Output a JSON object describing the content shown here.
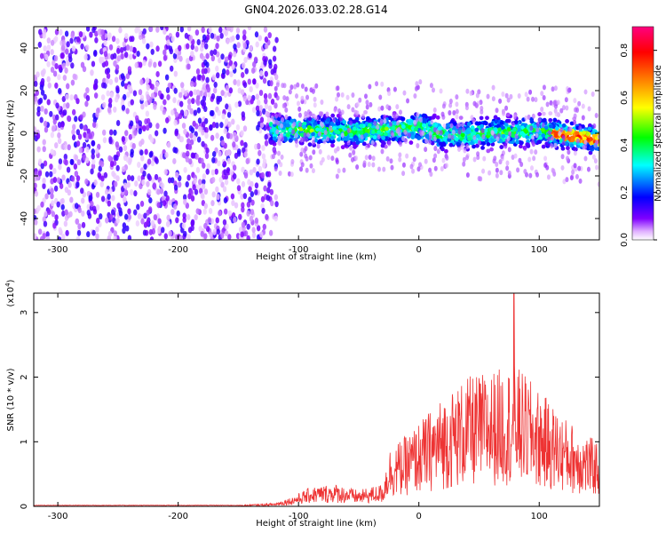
{
  "figure_title": "GN04.2026.033.02.28.G14",
  "chart_data": [
    {
      "type": "heatmap",
      "title": "GN04.2026.033.02.28.G14",
      "xlabel": "Height of straight line (km)",
      "ylabel": "Frequency (Hz)",
      "xlim": [
        -320,
        150
      ],
      "ylim": [
        -50,
        50
      ],
      "xticks": [
        -300,
        -200,
        -100,
        0,
        100
      ],
      "yticks": [
        -40,
        -20,
        0,
        20,
        40
      ],
      "colorbar": {
        "label": "Normalized spectral amplitude",
        "range": [
          0,
          0.9
        ],
        "ticks": [
          "0.0",
          "0.2",
          "0.4",
          "0.6",
          "0.8"
        ],
        "tick_values": [
          0,
          0.2,
          0.4,
          0.6,
          0.8
        ],
        "colormap": [
          "#ffffff",
          "#7f00ff",
          "#0000ff",
          "#00ffff",
          "#00ff00",
          "#ffff00",
          "#ff8000",
          "#ff0000",
          "#ff0080"
        ]
      },
      "features": {
        "noise_region_x": [
          -320,
          -123
        ],
        "band_region_x": [
          -123,
          150
        ],
        "band_center_hz": [
          {
            "x": -120,
            "y": 2
          },
          {
            "x": -80,
            "y": 1
          },
          {
            "x": -40,
            "y": 1
          },
          {
            "x": 0,
            "y": 3
          },
          {
            "x": 20,
            "y": -1
          },
          {
            "x": 60,
            "y": 0
          },
          {
            "x": 100,
            "y": 1
          },
          {
            "x": 150,
            "y": -3
          }
        ],
        "band_halfwidth_hz": 6
      }
    },
    {
      "type": "line",
      "xlabel": "Height of straight line (km)",
      "ylabel": "SNR (10 * v/v)",
      "yscale_label": "(x10",
      "yscale_exponent": "4",
      "yscale_close": ")",
      "xlim": [
        -320,
        150
      ],
      "ylim": [
        0,
        3.3
      ],
      "xticks": [
        -300,
        -200,
        -100,
        0,
        100
      ],
      "yticks": [
        0,
        1,
        2,
        3
      ],
      "series_color": "#ee3333",
      "envelope": [
        {
          "x": -320,
          "y": 0.02
        },
        {
          "x": -150,
          "y": 0.02
        },
        {
          "x": -120,
          "y": 0.05
        },
        {
          "x": -105,
          "y": 0.15
        },
        {
          "x": -90,
          "y": 0.3
        },
        {
          "x": -70,
          "y": 0.35
        },
        {
          "x": -50,
          "y": 0.25
        },
        {
          "x": -30,
          "y": 0.35
        },
        {
          "x": -25,
          "y": 0.9
        },
        {
          "x": -10,
          "y": 1.1
        },
        {
          "x": 0,
          "y": 1.3
        },
        {
          "x": 20,
          "y": 1.7
        },
        {
          "x": 40,
          "y": 2.0
        },
        {
          "x": 60,
          "y": 2.1
        },
        {
          "x": 80,
          "y": 2.2
        },
        {
          "x": 100,
          "y": 1.8
        },
        {
          "x": 120,
          "y": 1.4
        },
        {
          "x": 140,
          "y": 1.1
        },
        {
          "x": 150,
          "y": 1.0
        }
      ],
      "peak": {
        "x": 79,
        "y": 3.3
      }
    }
  ]
}
